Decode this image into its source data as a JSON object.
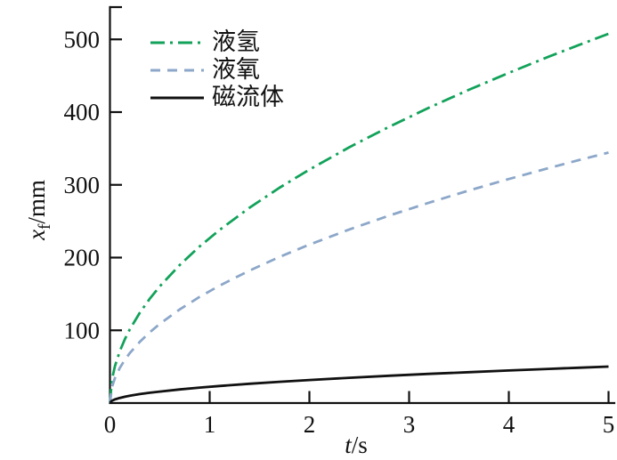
{
  "figure": {
    "background": "#ffffff",
    "text_color": "#111111"
  },
  "axes": {
    "y": {
      "label_var": "x",
      "label_sub": "f",
      "label_unit": "/mm",
      "ticks": [
        100,
        200,
        300,
        400,
        500
      ]
    },
    "x": {
      "label_var": "t",
      "label_unit": "/s",
      "ticks": [
        0,
        1,
        2,
        3,
        4,
        5
      ]
    }
  },
  "chart_data": {
    "type": "line",
    "title": "",
    "xlabel": "t/s",
    "ylabel": "x_f/mm",
    "xlim": [
      0,
      5
    ],
    "ylim": [
      0,
      550
    ],
    "grid": false,
    "legend_position": "top-left",
    "x": [
      0,
      0.02,
      0.05,
      0.1,
      0.15,
      0.2,
      0.3,
      0.4,
      0.5,
      0.7,
      0.9,
      1.1,
      1.4,
      1.7,
      2.0,
      2.4,
      2.8,
      3.2,
      3.6,
      4.0,
      4.4,
      4.7,
      5.0
    ],
    "series": [
      {
        "name": "液氢",
        "color": "#12a25a",
        "line_style": "dash-dot",
        "values": [
          0,
          32.1,
          50.8,
          71.8,
          87.9,
          101.5,
          124.3,
          143.6,
          160.5,
          189.9,
          215.4,
          238.1,
          268.6,
          296.0,
          321.0,
          351.7,
          379.8,
          406.1,
          430.7,
          454.0,
          476.2,
          492.1,
          507.6
        ]
      },
      {
        "name": "液氧",
        "color": "#8ca7c9",
        "line_style": "dashed",
        "values": [
          0,
          21.8,
          34.4,
          48.7,
          59.6,
          68.9,
          84.3,
          97.4,
          108.9,
          128.8,
          146.1,
          161.5,
          182.2,
          200.8,
          217.8,
          238.6,
          257.7,
          275.5,
          292.2,
          308.0,
          323.1,
          333.9,
          344.4
        ]
      },
      {
        "name": "磁流体",
        "color": "#111111",
        "line_style": "solid",
        "values": [
          0,
          3.2,
          5.0,
          7.1,
          8.7,
          10.0,
          12.3,
          14.2,
          15.8,
          18.7,
          21.3,
          23.5,
          26.5,
          29.2,
          31.7,
          34.7,
          37.5,
          40.1,
          42.5,
          44.8,
          47.0,
          48.6,
          50.1
        ]
      }
    ]
  }
}
